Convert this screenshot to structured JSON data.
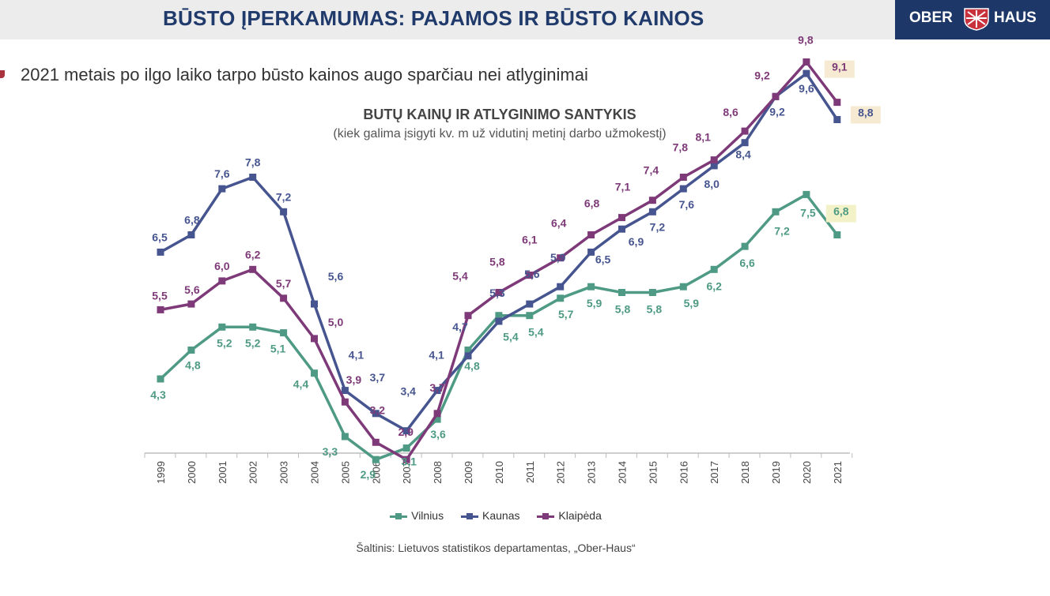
{
  "header": {
    "title": "BŪSTO ĮPERKAMUMAS: PAJAMOS IR BŪSTO KAINOS",
    "logo_left": "OBER",
    "logo_right": "HAUS"
  },
  "subtitle": "2021 metais po ilgo laiko tarpo būsto kainos augo sparčiau nei atlyginimai",
  "source": "Šaltinis: Lietuvos statistikos departamentas, „Ober-Haus“",
  "colors": {
    "header_bg": "#ececec",
    "title": "#1f3a6b",
    "logo_bg": "#1d3868",
    "bullet": "#a8323e",
    "highlight_purple": "#f6ead3",
    "highlight_green": "#f3f1c7"
  },
  "chart_data": {
    "type": "line",
    "title": "BUTŲ KAINŲ IR ATLYGINIMO SANTYKIS",
    "subtitle": "(kiek galima įsigyti kv. m už vidutinį metinį darbo užmokestį)",
    "xlabel": "",
    "ylabel": "",
    "ylim": [
      2,
      10
    ],
    "grid": false,
    "legend_position": "bottom",
    "categories": [
      "1999",
      "2000",
      "2001",
      "2002",
      "2003",
      "2004",
      "2005",
      "2006",
      "2007",
      "2008",
      "2009",
      "2010",
      "2011",
      "2012",
      "2013",
      "2014",
      "2015",
      "2016",
      "2017",
      "2018",
      "2019",
      "2020",
      "2021"
    ],
    "series": [
      {
        "name": "Vilnius",
        "color": "#4e9a84",
        "values": [
          4.3,
          4.8,
          5.2,
          5.2,
          5.1,
          4.4,
          3.3,
          2.9,
          3.1,
          3.6,
          4.8,
          5.4,
          5.4,
          5.7,
          5.9,
          5.8,
          5.8,
          5.9,
          6.2,
          6.6,
          7.2,
          7.5,
          6.8
        ],
        "labels": [
          "4,3",
          "4,8",
          "5,2",
          "5,2",
          "5,1",
          "4,4",
          "3,3",
          "2,9",
          "3,1",
          "3,6",
          "4,8",
          "5,4",
          "5,4",
          "5,7",
          "5,9",
          "5,8",
          "5,8",
          "5,9",
          "6,2",
          "6,6",
          "7,2",
          "7,5",
          "6,8"
        ]
      },
      {
        "name": "Kaunas",
        "color": "#46558f",
        "values": [
          6.5,
          6.8,
          7.6,
          7.8,
          7.2,
          5.6,
          4.1,
          3.7,
          3.4,
          4.1,
          4.7,
          5.3,
          5.6,
          5.9,
          6.5,
          6.9,
          7.2,
          7.6,
          8.0,
          8.4,
          9.2,
          9.6,
          8.8
        ],
        "labels": [
          "6,5",
          "6,8",
          "7,6",
          "7,8",
          "7,2",
          "5,6",
          "4,1",
          "3,7",
          "3,4",
          "4,1",
          "4,7",
          "5,3",
          "5,6",
          "5,9",
          "6,5",
          "6,9",
          "7,2",
          "7,6",
          "8,0",
          "8,4",
          "9,2",
          "9,6",
          "8,8"
        ]
      },
      {
        "name": "Klaipėda",
        "color": "#7e3a78",
        "values": [
          5.5,
          5.6,
          6.0,
          6.2,
          5.7,
          5.0,
          3.9,
          3.2,
          2.9,
          3.7,
          5.4,
          5.8,
          6.1,
          6.4,
          6.8,
          7.1,
          7.4,
          7.8,
          8.1,
          8.6,
          9.2,
          9.8,
          9.1
        ],
        "labels": [
          "5,5",
          "5,6",
          "6,0",
          "6,2",
          "5,7",
          "5,0",
          "3,9",
          "3,2",
          "2,9",
          "3,7",
          "5,4",
          "5,8",
          "6,1",
          "6,4",
          "6,8",
          "7,1",
          "7,4",
          "7,8",
          "8,1",
          "8,6",
          "9,2",
          "9,8",
          "9,1"
        ]
      }
    ]
  }
}
